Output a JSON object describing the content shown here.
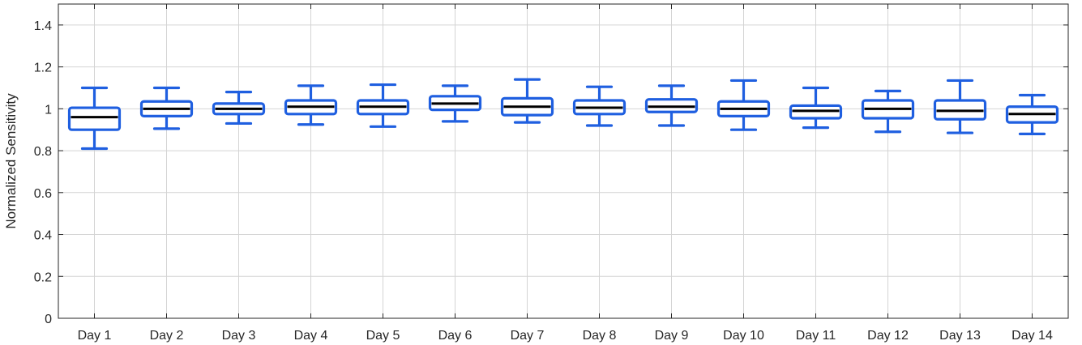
{
  "chart_data": {
    "type": "box",
    "title": "",
    "xlabel": "",
    "ylabel": "Normalized Sensitivity",
    "ylim": [
      0,
      1.5
    ],
    "yticks": [
      0,
      0.2,
      0.4,
      0.6,
      0.8,
      1,
      1.2,
      1.4
    ],
    "ytick_labels": [
      "0",
      "0.2",
      "0.4",
      "0.6",
      "0.8",
      "1",
      "1.2",
      "1.4"
    ],
    "grid": true,
    "categories": [
      "Day 1",
      "Day 2",
      "Day 3",
      "Day 4",
      "Day 5",
      "Day 6",
      "Day 7",
      "Day 8",
      "Day 9",
      "Day 10",
      "Day 11",
      "Day 12",
      "Day 13",
      "Day 14"
    ],
    "boxes": [
      {
        "label": "Day 1",
        "whisker_low": 0.81,
        "q1": 0.9,
        "median": 0.96,
        "q3": 1.005,
        "whisker_high": 1.1
      },
      {
        "label": "Day 2",
        "whisker_low": 0.905,
        "q1": 0.965,
        "median": 1.0,
        "q3": 1.035,
        "whisker_high": 1.1
      },
      {
        "label": "Day 3",
        "whisker_low": 0.93,
        "q1": 0.975,
        "median": 1.0,
        "q3": 1.025,
        "whisker_high": 1.08
      },
      {
        "label": "Day 4",
        "whisker_low": 0.925,
        "q1": 0.975,
        "median": 1.01,
        "q3": 1.04,
        "whisker_high": 1.11
      },
      {
        "label": "Day 5",
        "whisker_low": 0.915,
        "q1": 0.975,
        "median": 1.01,
        "q3": 1.04,
        "whisker_high": 1.115
      },
      {
        "label": "Day 6",
        "whisker_low": 0.94,
        "q1": 0.995,
        "median": 1.025,
        "q3": 1.06,
        "whisker_high": 1.11
      },
      {
        "label": "Day 7",
        "whisker_low": 0.935,
        "q1": 0.97,
        "median": 1.01,
        "q3": 1.05,
        "whisker_high": 1.14
      },
      {
        "label": "Day 8",
        "whisker_low": 0.92,
        "q1": 0.975,
        "median": 1.005,
        "q3": 1.04,
        "whisker_high": 1.105
      },
      {
        "label": "Day 9",
        "whisker_low": 0.92,
        "q1": 0.985,
        "median": 1.01,
        "q3": 1.045,
        "whisker_high": 1.11
      },
      {
        "label": "Day 10",
        "whisker_low": 0.9,
        "q1": 0.965,
        "median": 1.0,
        "q3": 1.035,
        "whisker_high": 1.135
      },
      {
        "label": "Day 11",
        "whisker_low": 0.91,
        "q1": 0.955,
        "median": 0.99,
        "q3": 1.015,
        "whisker_high": 1.1
      },
      {
        "label": "Day 12",
        "whisker_low": 0.89,
        "q1": 0.955,
        "median": 1.0,
        "q3": 1.04,
        "whisker_high": 1.085
      },
      {
        "label": "Day 13",
        "whisker_low": 0.885,
        "q1": 0.95,
        "median": 0.99,
        "q3": 1.04,
        "whisker_high": 1.135
      },
      {
        "label": "Day 14",
        "whisker_low": 0.88,
        "q1": 0.935,
        "median": 0.975,
        "q3": 1.01,
        "whisker_high": 1.065
      }
    ],
    "box_color": "#1f5fe0",
    "median_color": "#000000",
    "grid_color": "#d4d4d4",
    "axis_color": "#262626"
  }
}
